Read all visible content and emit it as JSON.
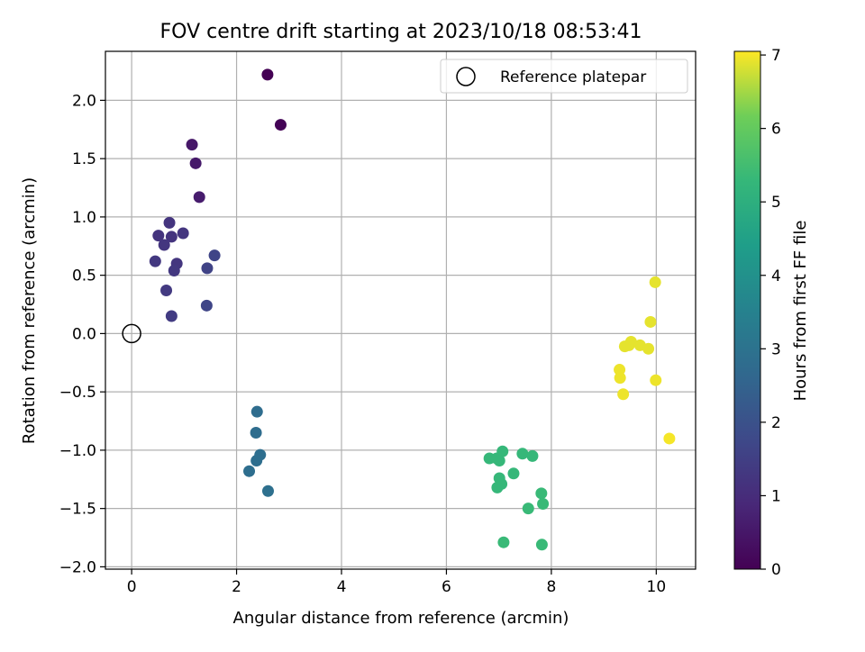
{
  "chart_data": {
    "type": "scatter",
    "title": "FOV centre drift starting at 2023/10/18 08:53:41",
    "xlabel": "Angular distance from reference (arcmin)",
    "ylabel": "Rotation from reference (arcmin)",
    "xlim": [
      -0.5,
      10.75
    ],
    "ylim": [
      -2.02,
      2.42
    ],
    "xticks": [
      0,
      2,
      4,
      6,
      8,
      10
    ],
    "yticks": [
      2.0,
      1.5,
      1.0,
      0.5,
      0.0,
      -0.5,
      -1.0,
      -1.5,
      -2.0
    ],
    "ytick_labels": [
      "2.0",
      "1.5",
      "1.0",
      "0.5",
      "0.0",
      "−0.5",
      "−1.0",
      "−1.5",
      "−2.0"
    ],
    "grid": true,
    "legend": {
      "placement": "upper right",
      "label": "Reference platepar"
    },
    "reference_point": {
      "x": 0,
      "y": 0
    },
    "colorbar": {
      "label": "Hours from first FF file",
      "ticks": [
        0,
        1,
        2,
        3,
        4,
        5,
        6,
        7
      ],
      "range": [
        0,
        7.05
      ],
      "colormap": "viridis"
    },
    "points": [
      {
        "x": 2.59,
        "y": 2.22,
        "h": 0.0
      },
      {
        "x": 2.84,
        "y": 1.79,
        "h": 0.05
      },
      {
        "x": 1.15,
        "y": 1.62,
        "h": 0.5
      },
      {
        "x": 1.22,
        "y": 1.46,
        "h": 0.55
      },
      {
        "x": 1.29,
        "y": 1.17,
        "h": 0.6
      },
      {
        "x": 0.72,
        "y": 0.95,
        "h": 1.2
      },
      {
        "x": 0.51,
        "y": 0.84,
        "h": 1.2
      },
      {
        "x": 0.76,
        "y": 0.83,
        "h": 1.2
      },
      {
        "x": 0.98,
        "y": 0.86,
        "h": 1.25
      },
      {
        "x": 0.62,
        "y": 0.76,
        "h": 1.25
      },
      {
        "x": 0.86,
        "y": 0.6,
        "h": 1.25
      },
      {
        "x": 0.81,
        "y": 0.54,
        "h": 1.3
      },
      {
        "x": 0.45,
        "y": 0.62,
        "h": 1.3
      },
      {
        "x": 0.66,
        "y": 0.37,
        "h": 1.35
      },
      {
        "x": 0.76,
        "y": 0.15,
        "h": 1.4
      },
      {
        "x": 1.44,
        "y": 0.56,
        "h": 1.6
      },
      {
        "x": 1.58,
        "y": 0.67,
        "h": 1.65
      },
      {
        "x": 1.43,
        "y": 0.24,
        "h": 1.65
      },
      {
        "x": 2.39,
        "y": -0.67,
        "h": 2.8
      },
      {
        "x": 2.37,
        "y": -0.85,
        "h": 2.8
      },
      {
        "x": 2.45,
        "y": -1.04,
        "h": 2.85
      },
      {
        "x": 2.38,
        "y": -1.09,
        "h": 2.85
      },
      {
        "x": 2.24,
        "y": -1.18,
        "h": 2.85
      },
      {
        "x": 2.6,
        "y": -1.35,
        "h": 2.9
      },
      {
        "x": 7.07,
        "y": -1.01,
        "h": 5.3
      },
      {
        "x": 6.82,
        "y": -1.07,
        "h": 5.3
      },
      {
        "x": 6.96,
        "y": -1.07,
        "h": 5.3
      },
      {
        "x": 7.01,
        "y": -1.09,
        "h": 5.3
      },
      {
        "x": 7.45,
        "y": -1.03,
        "h": 5.3
      },
      {
        "x": 7.64,
        "y": -1.05,
        "h": 5.3
      },
      {
        "x": 7.28,
        "y": -1.2,
        "h": 5.3
      },
      {
        "x": 7.01,
        "y": -1.24,
        "h": 5.3
      },
      {
        "x": 7.05,
        "y": -1.29,
        "h": 5.3
      },
      {
        "x": 6.97,
        "y": -1.32,
        "h": 5.3
      },
      {
        "x": 7.81,
        "y": -1.37,
        "h": 5.35
      },
      {
        "x": 7.84,
        "y": -1.46,
        "h": 5.35
      },
      {
        "x": 7.56,
        "y": -1.5,
        "h": 5.35
      },
      {
        "x": 7.09,
        "y": -1.79,
        "h": 5.35
      },
      {
        "x": 7.82,
        "y": -1.81,
        "h": 5.35
      },
      {
        "x": 9.98,
        "y": 0.44,
        "h": 6.9
      },
      {
        "x": 9.89,
        "y": 0.1,
        "h": 6.9
      },
      {
        "x": 9.52,
        "y": -0.07,
        "h": 6.9
      },
      {
        "x": 9.48,
        "y": -0.1,
        "h": 6.9
      },
      {
        "x": 9.4,
        "y": -0.11,
        "h": 6.9
      },
      {
        "x": 9.69,
        "y": -0.1,
        "h": 6.9
      },
      {
        "x": 9.85,
        "y": -0.13,
        "h": 6.9
      },
      {
        "x": 9.3,
        "y": -0.31,
        "h": 6.95
      },
      {
        "x": 9.31,
        "y": -0.38,
        "h": 6.95
      },
      {
        "x": 9.99,
        "y": -0.4,
        "h": 6.95
      },
      {
        "x": 9.37,
        "y": -0.52,
        "h": 6.95
      },
      {
        "x": 10.25,
        "y": -0.9,
        "h": 7.0
      }
    ]
  }
}
